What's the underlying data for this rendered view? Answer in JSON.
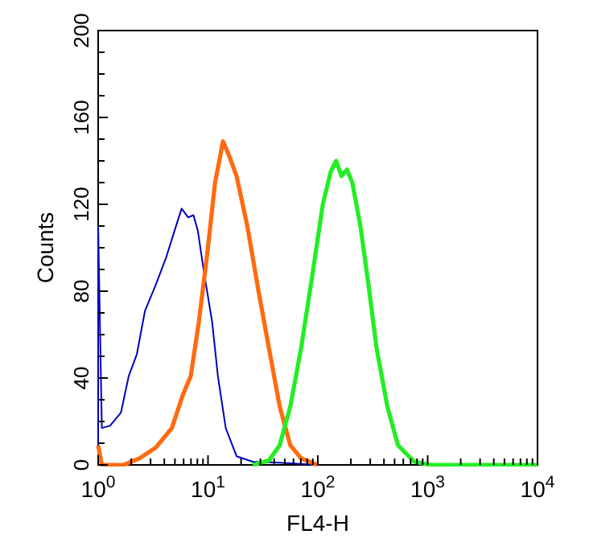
{
  "chart_data": {
    "type": "line",
    "xlabel": "FL4-H",
    "ylabel": "Counts",
    "log": "x",
    "xlim": [
      1,
      10000
    ],
    "ylim": [
      0,
      200
    ],
    "xticks": [
      {
        "value": 1,
        "label": "10$^{0}$"
      },
      {
        "value": 2,
        "label": null
      },
      {
        "value": 3,
        "label": null
      },
      {
        "value": 4,
        "label": null
      },
      {
        "value": 5,
        "label": null
      },
      {
        "value": 6,
        "label": null
      },
      {
        "value": 7,
        "label": null
      },
      {
        "value": 8,
        "label": null
      },
      {
        "value": 9,
        "label": null
      },
      {
        "value": 10,
        "label": "10$^{1}$"
      },
      {
        "value": 20,
        "label": null
      },
      {
        "value": 30,
        "label": null
      },
      {
        "value": 40,
        "label": null
      },
      {
        "value": 50,
        "label": null
      },
      {
        "value": 60,
        "label": null
      },
      {
        "value": 70,
        "label": null
      },
      {
        "value": 80,
        "label": null
      },
      {
        "value": 90,
        "label": null
      },
      {
        "value": 100,
        "label": "10$^{2}$"
      },
      {
        "value": 200,
        "label": null
      },
      {
        "value": 300,
        "label": null
      },
      {
        "value": 400,
        "label": null
      },
      {
        "value": 500,
        "label": null
      },
      {
        "value": 600,
        "label": null
      },
      {
        "value": 700,
        "label": null
      },
      {
        "value": 800,
        "label": null
      },
      {
        "value": 900,
        "label": null
      },
      {
        "value": 1000,
        "label": "10$^{3}$"
      },
      {
        "value": 2000,
        "label": null
      },
      {
        "value": 3000,
        "label": null
      },
      {
        "value": 4000,
        "label": null
      },
      {
        "value": 5000,
        "label": null
      },
      {
        "value": 6000,
        "label": null
      },
      {
        "value": 7000,
        "label": null
      },
      {
        "value": 8000,
        "label": null
      },
      {
        "value": 9000,
        "label": null
      },
      {
        "value": 10000,
        "label": "10$^{4}$"
      }
    ],
    "yticks": [
      0,
      {
        "value": 10,
        "label": null
      },
      {
        "value": 20,
        "label": null
      },
      {
        "value": 30,
        "label": null
      },
      40,
      {
        "value": 50,
        "label": null
      },
      {
        "value": 60,
        "label": null
      },
      {
        "value": 70,
        "label": null
      },
      80,
      {
        "value": 90,
        "label": null
      },
      {
        "value": 100,
        "label": null
      },
      {
        "value": 110,
        "label": null
      },
      120,
      {
        "value": 130,
        "label": null
      },
      {
        "value": 140,
        "label": null
      },
      {
        "value": 150,
        "label": null
      },
      160,
      {
        "value": 170,
        "label": null
      },
      {
        "value": 180,
        "label": null
      },
      {
        "value": 190,
        "label": null
      },
      200
    ],
    "grid": false,
    "marker": "none",
    "line_style": "solid",
    "series": [
      {
        "color": "#0000c0",
        "x": [
          1,
          1,
          1.08,
          1.28,
          1.61,
          1.9,
          2.25,
          2.67,
          3.35,
          4.19,
          4.97,
          5.75,
          6.59,
          7.37,
          8.07,
          9.24,
          10.9,
          12.3,
          14.5,
          18.2,
          25.5,
          44.9,
          98.9
        ],
        "values": [
          0,
          110,
          17,
          18,
          24,
          41,
          51,
          71,
          83,
          96,
          108,
          118,
          114,
          115,
          108,
          88,
          66,
          41,
          17,
          4,
          1.5,
          1,
          0
        ]
      },
      {
        "color": "#ff6a10",
        "x": [
          1,
          1.08,
          1.7,
          2.38,
          3.35,
          4.69,
          5.88,
          6.97,
          8.26,
          9.78,
          11.6,
          13.7,
          15.4,
          18.2,
          22.8,
          28.6,
          35.8,
          44.9,
          56.2,
          70.5,
          98.9
        ],
        "values": [
          9,
          0,
          0,
          3,
          8,
          17,
          32,
          41,
          66,
          96,
          130,
          149,
          143,
          133,
          110,
          81,
          54,
          27,
          9,
          3,
          0
        ]
      },
      {
        "color": "#22ee22",
        "x": [
          25.5,
          35.8,
          44.9,
          56.2,
          70.5,
          88.3,
          111,
          131,
          147,
          164,
          184,
          206,
          244,
          289,
          342,
          429,
          537,
          754,
          1059,
          10000
        ],
        "values": [
          0,
          2,
          9,
          27,
          54,
          86,
          120,
          135,
          140,
          133,
          136,
          130,
          110,
          83,
          54,
          27,
          9,
          1.5,
          0,
          0
        ]
      }
    ]
  }
}
